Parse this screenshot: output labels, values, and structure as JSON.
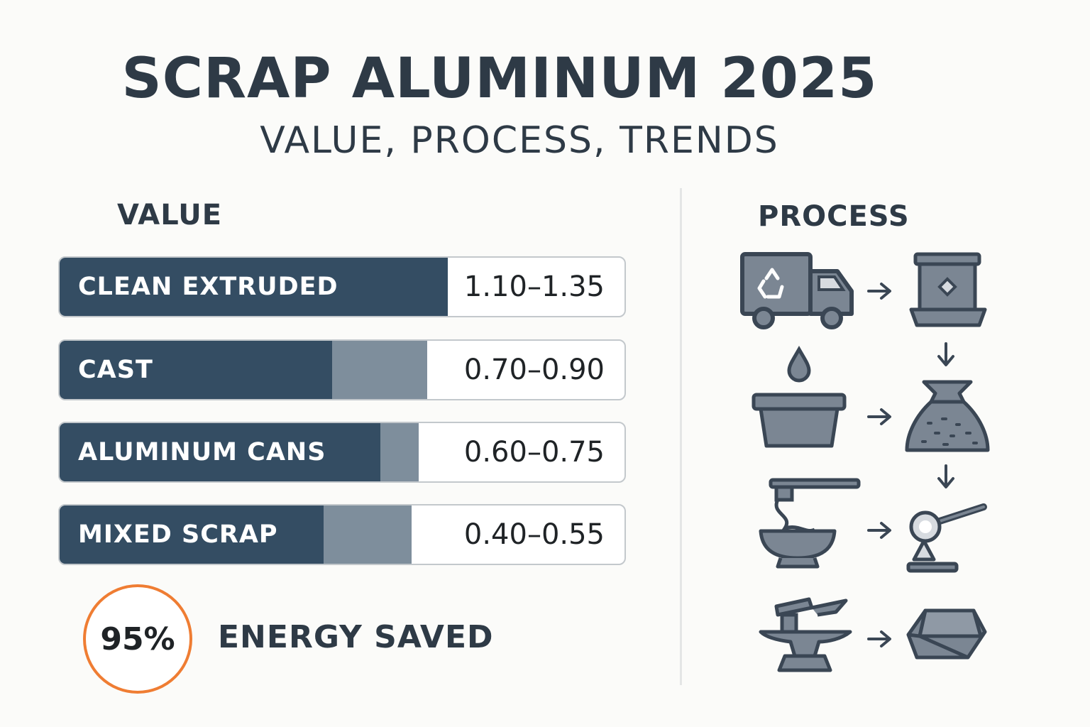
{
  "header": {
    "title": "SCRAP ALUMINUM 2025",
    "subtitle": "VALUE, PROCESS, TRENDS"
  },
  "value_section": {
    "heading": "VALUE",
    "items": [
      {
        "label": "CLEAN EXTRUDED",
        "range": "1.10–1.35"
      },
      {
        "label": "CAST",
        "range": "0.70–0.90"
      },
      {
        "label": "ALUMINUM CANS",
        "range": "0.60–0.75"
      },
      {
        "label": "MIXED SCRAP",
        "range": "0.40–0.55"
      }
    ]
  },
  "energy": {
    "percent": "95%",
    "label": "ENERGY SAVED"
  },
  "process_section": {
    "heading": "PROCESS",
    "steps": [
      {
        "icon": "recycling-truck-icon"
      },
      {
        "icon": "sorting-machine-icon"
      },
      {
        "icon": "shredded-bag-icon"
      },
      {
        "icon": "washing-tub-icon"
      },
      {
        "icon": "furnace-pour-icon"
      },
      {
        "icon": "ladle-casting-icon"
      },
      {
        "icon": "anvil-press-icon"
      },
      {
        "icon": "ingot-icon"
      }
    ]
  },
  "colors": {
    "dark_fill": "#344d63",
    "mid_fill": "#7e8e9c",
    "accent_orange": "#ef7d33",
    "icon_fill": "#7b8693",
    "icon_stroke": "#3a4654"
  }
}
